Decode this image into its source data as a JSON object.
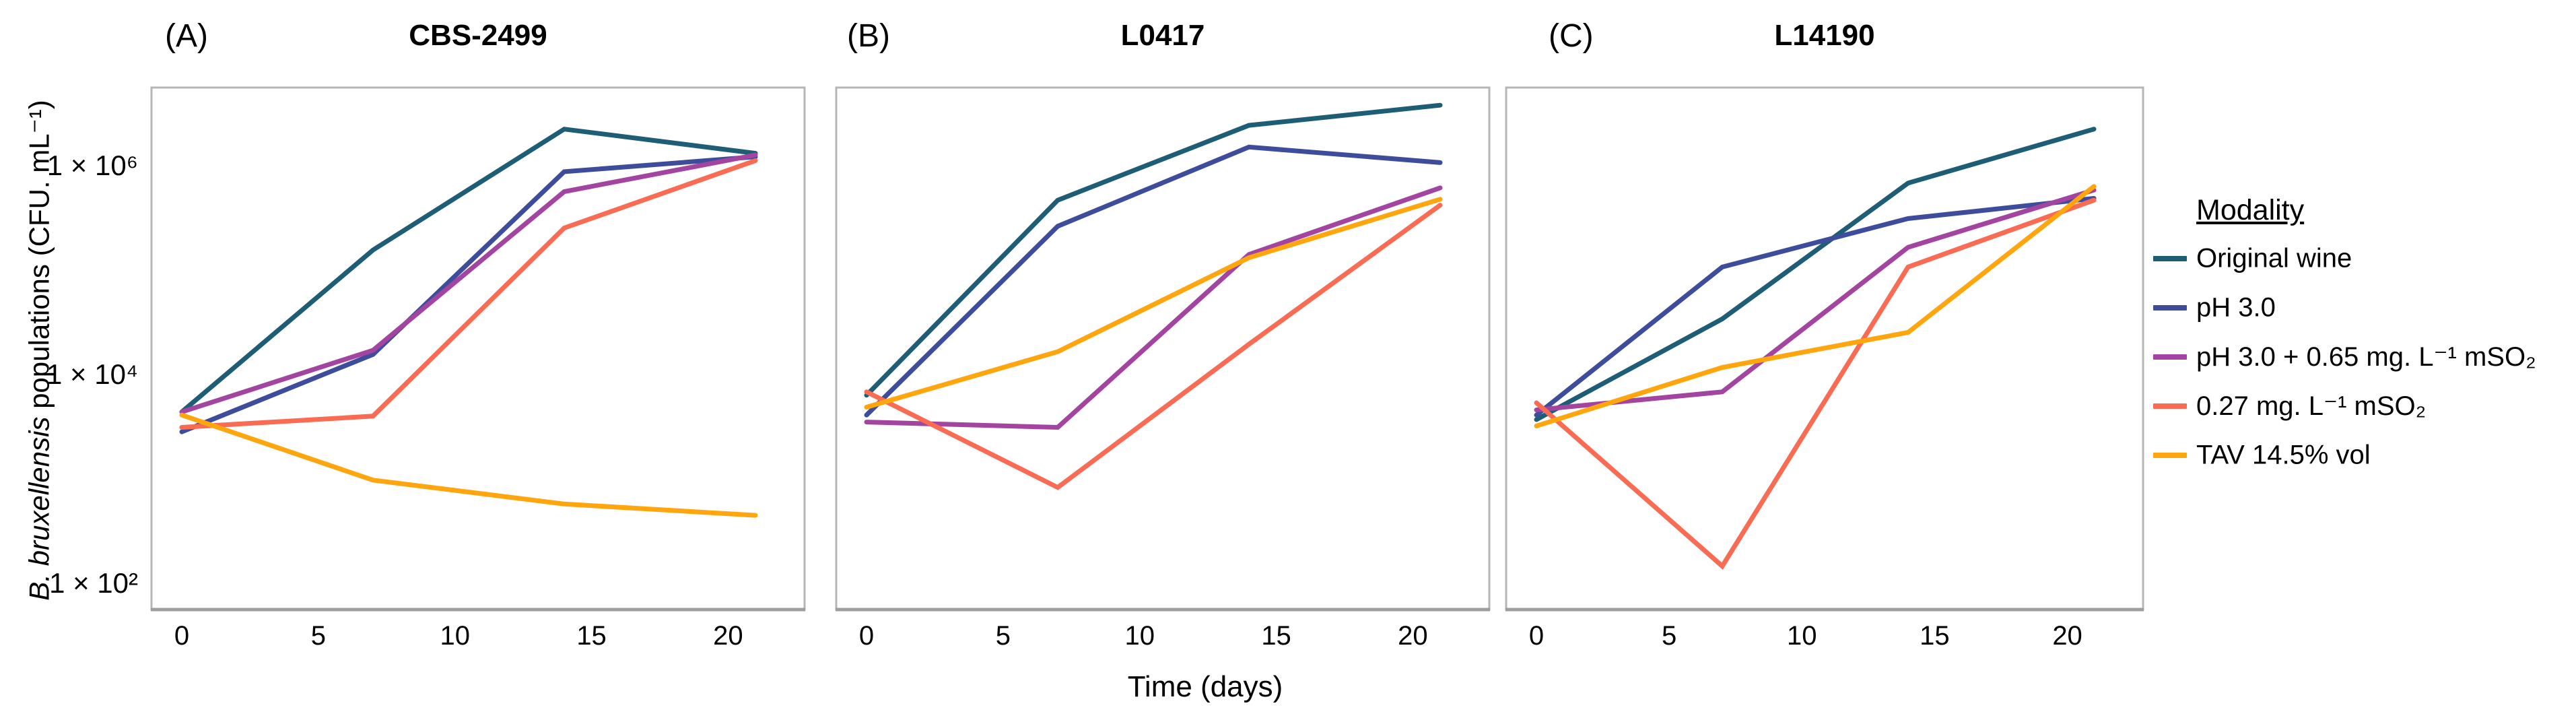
{
  "y_axis": {
    "label": {
      "species": "B. bruxellensis",
      "rest": " populations (CFU. mL⁻¹)"
    },
    "ticks": [
      {
        "label": "1 × 10⁶",
        "log": 6
      },
      {
        "label": "1 × 10⁴",
        "log": 4
      },
      {
        "label": "1 × 10²",
        "log": 2
      }
    ]
  },
  "x_axis": {
    "label": "Time (days)",
    "tick_days": [
      0,
      5,
      10,
      15,
      20
    ]
  },
  "legend": {
    "title": "Modality",
    "entries": [
      {
        "label": "Original wine",
        "color": "#1d5d75"
      },
      {
        "label": "pH 3.0",
        "color": "#3e4d9b"
      },
      {
        "label": "pH 3.0 + 0.65 mg. L⁻¹ mSO₂",
        "color": "#a344a0"
      },
      {
        "label": "0.27 mg. L⁻¹ mSO₂",
        "color": "#f96c53"
      },
      {
        "label": "TAV 14.5% vol",
        "color": "#ffa60e"
      }
    ]
  },
  "chart_data": [
    {
      "type": "line",
      "panel_label": "(A)",
      "title": "CBS-2499",
      "x": [
        0,
        7,
        14,
        21
      ],
      "xlabel": "Time (days)",
      "ylabel": "B. bruxellensis populations (CFU. mL⁻¹)",
      "ylog_scale": true,
      "ylim": [
        57,
        5800000
      ],
      "xlim": [
        -1.1,
        22.9
      ],
      "grid": false,
      "series": [
        {
          "name": "Original wine",
          "color": "#1d5d75",
          "values": [
            4500,
            160000,
            2300000,
            1350000
          ]
        },
        {
          "name": "pH 3.0",
          "color": "#3e4d9b",
          "values": [
            2900,
            16000,
            900000,
            1250000
          ]
        },
        {
          "name": "pH 3.0 + 0.65 mg. L⁻¹ mSO₂",
          "color": "#a344a0",
          "values": [
            4500,
            17500,
            580000,
            1300000
          ]
        },
        {
          "name": "0.27 mg. L⁻¹ mSO₂",
          "color": "#f96c53",
          "values": [
            3200,
            4100,
            260000,
            1150000
          ]
        },
        {
          "name": "TAV 14.5% vol",
          "color": "#ffa60e",
          "values": [
            4200,
            1000,
            590,
            460
          ]
        }
      ]
    },
    {
      "type": "line",
      "panel_label": "(B)",
      "title": "L0417",
      "x": [
        0,
        7,
        14,
        21
      ],
      "xlabel": "Time (days)",
      "ylabel": "B. bruxellensis populations (CFU. mL⁻¹)",
      "ylog_scale": true,
      "ylim": [
        57,
        5800000
      ],
      "xlim": [
        -1.1,
        22.9
      ],
      "grid": false,
      "series": [
        {
          "name": "Original wine",
          "color": "#1d5d75",
          "values": [
            6500,
            480000,
            2500000,
            3900000
          ]
        },
        {
          "name": "pH 3.0",
          "color": "#3e4d9b",
          "values": [
            4200,
            270000,
            1550000,
            1100000
          ]
        },
        {
          "name": "pH 3.0 + 0.65 mg. L⁻¹ mSO₂",
          "color": "#a344a0",
          "values": [
            3600,
            3200,
            145000,
            630000
          ]
        },
        {
          "name": "0.27 mg. L⁻¹ mSO₂",
          "color": "#f96c53",
          "values": [
            7000,
            850,
            20000,
            430000
          ]
        },
        {
          "name": "TAV 14.5% vol",
          "color": "#ffa60e",
          "values": [
            5000,
            17000,
            135000,
            490000
          ]
        }
      ]
    },
    {
      "type": "line",
      "panel_label": "(C)",
      "title": "L14190",
      "x": [
        0,
        7,
        14,
        21
      ],
      "xlabel": "Time (days)",
      "ylabel": "B. bruxellensis populations (CFU. mL⁻¹)",
      "ylog_scale": true,
      "ylim": [
        57,
        5800000
      ],
      "xlim": [
        -1.1,
        22.9
      ],
      "grid": false,
      "series": [
        {
          "name": "Original wine",
          "color": "#1d5d75",
          "values": [
            3800,
            35000,
            700000,
            2300000
          ]
        },
        {
          "name": "pH 3.0",
          "color": "#3e4d9b",
          "values": [
            4200,
            110000,
            320000,
            500000
          ]
        },
        {
          "name": "pH 3.0 + 0.65 mg. L⁻¹ mSO₂",
          "color": "#a344a0",
          "values": [
            4700,
            7000,
            170000,
            600000
          ]
        },
        {
          "name": "0.27 mg. L⁻¹ mSO₂",
          "color": "#f96c53",
          "values": [
            5500,
            150,
            110000,
            480000
          ]
        },
        {
          "name": "TAV 14.5% vol",
          "color": "#ffa60e",
          "values": [
            3300,
            12000,
            26000,
            650000
          ]
        }
      ]
    }
  ]
}
